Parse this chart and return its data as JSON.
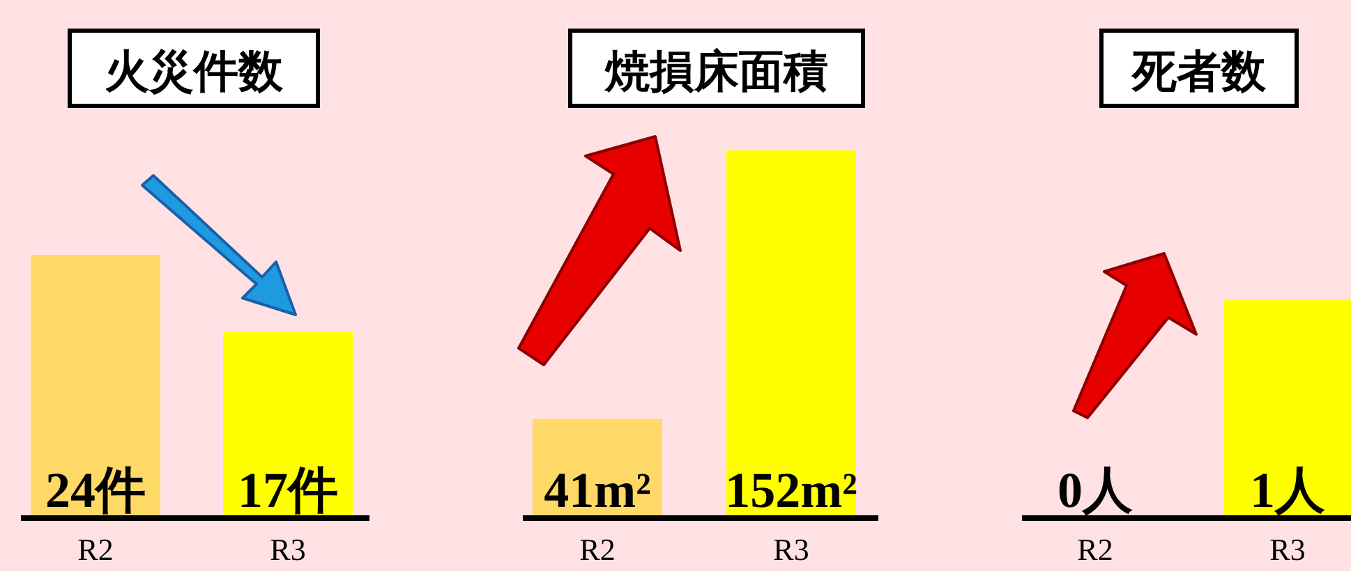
{
  "chart_data": [
    {
      "type": "bar",
      "title": "火災件数",
      "categories": [
        "R2",
        "R3"
      ],
      "values": [
        24,
        17
      ],
      "colors": [
        "#ffd966",
        "#ffff00"
      ],
      "value_labels": [
        "24件",
        "17件"
      ]
    },
    {
      "type": "bar",
      "title": "焼損床面積",
      "categories": [
        "R2",
        "R3"
      ],
      "values": [
        41,
        152
      ],
      "colors": [
        "#ffd966",
        "#ffff00"
      ],
      "value_labels": [
        "41m²",
        "152m²"
      ]
    },
    {
      "type": "bar",
      "title": "死者数",
      "categories": [
        "R2",
        "R3"
      ],
      "values": [
        0,
        1
      ],
      "colors": [
        "#ffd966",
        "#ffff00"
      ],
      "value_labels": [
        "0人",
        "1人"
      ]
    }
  ]
}
